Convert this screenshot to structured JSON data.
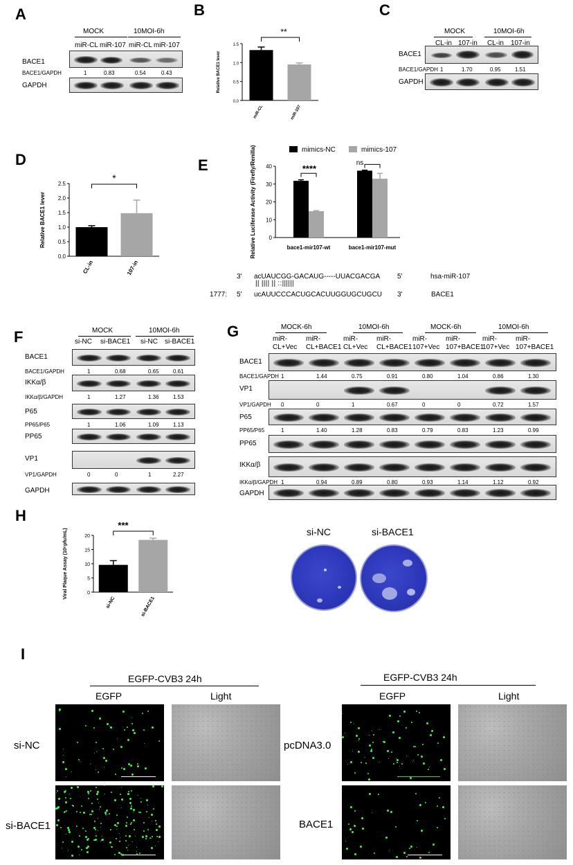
{
  "panels": {
    "A": {
      "label": "A",
      "groups": [
        "MOCK",
        "10MOI-6h"
      ],
      "lanes": [
        "miR-CL",
        "miR-107",
        "miR-CL",
        "miR-107"
      ],
      "rows": [
        "BACE1",
        "GAPDH"
      ],
      "ratio_label": "BACE1/GAPDH",
      "ratios": [
        "1",
        "0.83",
        "0.54",
        "0.43"
      ]
    },
    "B": {
      "label": "B",
      "significance": "**"
    },
    "C": {
      "label": "C",
      "groups": [
        "MOCK",
        "10MOI-6h"
      ],
      "lanes": [
        "CL-in",
        "107-in",
        "CL-in",
        "107-in"
      ],
      "rows": [
        "BACE1",
        "GAPDH"
      ],
      "ratio_label": "BACE1/GAPDH",
      "ratios": [
        "1",
        "1.70",
        "0.95",
        "1.51"
      ]
    },
    "D": {
      "label": "D",
      "significance": "*"
    },
    "E": {
      "label": "E",
      "legend": [
        "mimics-NC",
        "mimics-107"
      ],
      "sig_wt": "****",
      "sig_mut": "ns",
      "seq": {
        "top_prime_left": "3'",
        "top_seq": "acUAUCGG-GACAUG-----UUACGACGA",
        "top_prime_right": "5'",
        "top_name": "hsa-miR-107",
        "pairs": "||      ||||  ||        ::||||||",
        "pos": "1777:",
        "bot_prime_left": "5'",
        "bot_seq": "ucAUUCCCACUGCACUUGGUGCUGCU",
        "bot_prime_right": "3'",
        "bot_name": "BACE1"
      }
    },
    "F": {
      "label": "F",
      "groups": [
        "MOCK",
        "10MOI-6h"
      ],
      "lanes": [
        "si-NC",
        "si-BACE1",
        "si-NC",
        "si-BACE1"
      ],
      "rows": [
        {
          "name": "BACE1",
          "ratio_label": "BACE1/GAPDH",
          "ratios": [
            "1",
            "0.68",
            "0.65",
            "0.61"
          ]
        },
        {
          "name": "IKKα/β",
          "ratio_label": "IKKα/β/GAPDH",
          "ratios": [
            "1",
            "1.27",
            "1.36",
            "1.53"
          ]
        },
        {
          "name": "P65",
          "ratio_label": "PP65/P65",
          "ratios": [
            "1",
            "1.06",
            "1.09",
            "1.13"
          ]
        },
        {
          "name": "PP65",
          "ratio_label": "",
          "ratios": []
        },
        {
          "name": "VP1",
          "ratio_label": "VP1/GAPDH",
          "ratios": [
            "0",
            "0",
            "1",
            "2.27"
          ]
        },
        {
          "name": "GAPDH",
          "ratio_label": "",
          "ratios": []
        }
      ]
    },
    "G": {
      "label": "G",
      "groups": [
        "MOCK-6h",
        "10MOI-6h",
        "MOCK-6h",
        "10MOI-6h"
      ],
      "lanes_top": [
        "miR-",
        "miR-",
        "miR-",
        "miR-",
        "miR-",
        "miR-",
        "miR-",
        "miR-"
      ],
      "lanes_bottom": [
        "CL+Vec",
        "CL+BACE1",
        "CL+Vec",
        "CL+BACE1",
        "107+Vec",
        "107+BACE1",
        "107+Vec",
        "107+BACE1"
      ],
      "rows": [
        {
          "name": "BACE1",
          "ratio_label": "BACE1/GAPDH",
          "ratios": [
            "1",
            "1.44",
            "0.75",
            "0.91",
            "0.80",
            "1.04",
            "0.86",
            "1.30"
          ]
        },
        {
          "name": "VP1",
          "ratio_label": "VP1/GAPDH",
          "ratios": [
            "0",
            "0",
            "1",
            "0.67",
            "0",
            "0",
            "0.72",
            "1.57"
          ]
        },
        {
          "name": "P65",
          "ratio_label": "PP65/P65",
          "ratios": [
            "1",
            "1.40",
            "1.28",
            "0.83",
            "0.79",
            "0.83",
            "1.23",
            "0.99"
          ]
        },
        {
          "name": "PP65",
          "ratio_label": "",
          "ratios": []
        },
        {
          "name": "IKKα/β",
          "ratio_label": "IKKα/β/GAPDH",
          "ratios": [
            "1",
            "0.94",
            "0.89",
            "0.80",
            "0.93",
            "1.14",
            "1.12",
            "0.92"
          ]
        },
        {
          "name": "GAPDH",
          "ratio_label": "",
          "ratios": []
        }
      ]
    },
    "H": {
      "label": "H",
      "significance": "***",
      "plate_labels": [
        "si-NC",
        "si-BACE1"
      ]
    },
    "I": {
      "label": "I",
      "header": "EGFP-CVB3 24h",
      "col_egfp": "EGFP",
      "col_light": "Light",
      "left_rows": [
        "si-NC",
        "si-BACE1"
      ],
      "right_rows": [
        "pcDNA3.0",
        "BACE1"
      ]
    }
  },
  "chart_data": [
    {
      "id": "B",
      "type": "bar",
      "categories": [
        "miR-CL",
        "miR-107"
      ],
      "values": [
        1.33,
        0.95
      ],
      "errors": [
        0.08,
        0.04
      ],
      "colors": [
        "#000000",
        "#a6a6a6"
      ],
      "ylabel": "Relative BACE1 lever",
      "ylim": [
        0,
        1.5
      ],
      "yticks": [
        "0.0",
        "0.5",
        "1.0",
        "1.5"
      ]
    },
    {
      "id": "D",
      "type": "bar",
      "categories": [
        "CL-in",
        "107-in"
      ],
      "values": [
        1.0,
        1.48
      ],
      "errors": [
        0.05,
        0.45
      ],
      "colors": [
        "#000000",
        "#a6a6a6"
      ],
      "ylabel": "Relative BACE1 lever",
      "ylim": [
        0,
        2.5
      ],
      "yticks": [
        "0.0",
        "0.5",
        "1.0",
        "1.5",
        "2.0",
        "2.5"
      ]
    },
    {
      "id": "E",
      "type": "bar",
      "categories": [
        "bace1-mir107-wt",
        "bace1-mir107-mut"
      ],
      "series": [
        {
          "name": "mimics-NC",
          "values": [
            31.8,
            37.5
          ],
          "errors": [
            0.6,
            0.3
          ],
          "color": "#000000"
        },
        {
          "name": "mimics-107",
          "values": [
            14.8,
            33.0
          ],
          "errors": [
            0.3,
            3.0
          ],
          "color": "#a6a6a6"
        }
      ],
      "ylabel": "Relative Luciferase Activity (Firefly/Renilla)",
      "ylim": [
        0,
        40
      ],
      "yticks": [
        "0",
        "10",
        "20",
        "30",
        "40"
      ]
    },
    {
      "id": "H",
      "type": "bar",
      "categories": [
        "si-NC",
        "si-BACE1"
      ],
      "values": [
        9.6,
        18.4
      ],
      "errors": [
        1.5,
        0.6
      ],
      "colors": [
        "#000000",
        "#a6a6a6"
      ],
      "ylabel": "Viral Plaque Assay (10⁶pfu/mL)",
      "ylim": [
        0,
        20
      ],
      "yticks": [
        "0",
        "5",
        "10",
        "15",
        "20"
      ]
    }
  ]
}
